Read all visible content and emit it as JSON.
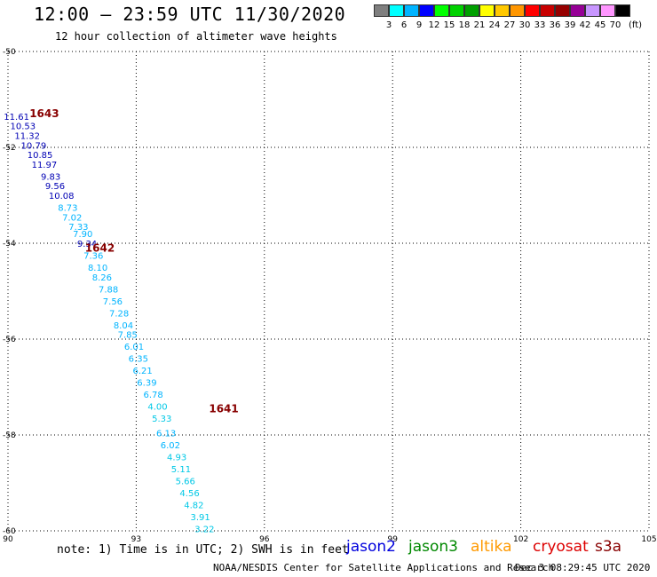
{
  "header": {
    "title": "12:00 – 23:59 UTC 11/30/2020",
    "subtitle": "12 hour collection of altimeter wave heights"
  },
  "colorbar": {
    "colors": [
      "#7f7f7f",
      "#00ffff",
      "#00b4ff",
      "#0000ff",
      "#00ff00",
      "#00d200",
      "#00a000",
      "#ffff00",
      "#ffc800",
      "#ff9600",
      "#ff0000",
      "#c80000",
      "#960000",
      "#960096",
      "#c896ff",
      "#ff96ff",
      "#000000"
    ],
    "labels": [
      "3",
      "6",
      "9",
      "12",
      "15",
      "18",
      "21",
      "24",
      "27",
      "30",
      "33",
      "36",
      "39",
      "42",
      "45",
      "70"
    ],
    "unit": "(ft)"
  },
  "footer": {
    "note": "note: 1) Time is in UTC; 2) SWH is in feet",
    "satellites": [
      {
        "name": "jason2",
        "color": "#0000dd"
      },
      {
        "name": "jason3",
        "color": "#008800"
      },
      {
        "name": "altika",
        "color": "#ff9900"
      },
      {
        "name": "cryosat",
        "color": "#dd0000"
      },
      {
        "name": "s3a",
        "color": "#880000"
      }
    ],
    "credit": "NOAA/NESDIS Center for Satellite Applications and Research",
    "timestamp": "Dec  3 08:29:45 UTC 2020"
  },
  "chart_data": {
    "type": "scatter",
    "xlim": [
      90,
      105
    ],
    "ylim": [
      -60,
      -50
    ],
    "xticks": [
      "90",
      "93",
      "96",
      "99",
      "102",
      "105"
    ],
    "yticks": [
      "-50",
      "-52",
      "-54",
      "-56",
      "-58",
      "-60"
    ],
    "grid": true,
    "points": [
      {
        "lon": 90.2,
        "lat": -51.35,
        "label": "11.61"
      },
      {
        "lon": 90.35,
        "lat": -51.55,
        "label": "10.53"
      },
      {
        "lon": 90.45,
        "lat": -51.75,
        "label": "11.32"
      },
      {
        "lon": 90.6,
        "lat": -51.95,
        "label": "10.79"
      },
      {
        "lon": 90.75,
        "lat": -52.15,
        "label": "10.85"
      },
      {
        "lon": 90.85,
        "lat": -52.35,
        "label": "11.97"
      },
      {
        "lon": 91.0,
        "lat": -52.6,
        "label": "9.83"
      },
      {
        "lon": 91.1,
        "lat": -52.8,
        "label": "9.56"
      },
      {
        "lon": 91.25,
        "lat": -53.0,
        "label": "10.08"
      },
      {
        "lon": 91.4,
        "lat": -53.25,
        "label": "8.73"
      },
      {
        "lon": 91.5,
        "lat": -53.45,
        "label": "7.02"
      },
      {
        "lon": 91.65,
        "lat": -53.65,
        "label": "7.33"
      },
      {
        "lon": 91.75,
        "lat": -53.8,
        "label": "7.90"
      },
      {
        "lon": 91.85,
        "lat": -54.0,
        "label": "9.34"
      },
      {
        "lon": 92.0,
        "lat": -54.25,
        "label": "7.36"
      },
      {
        "lon": 92.1,
        "lat": -54.5,
        "label": "8.10"
      },
      {
        "lon": 92.2,
        "lat": -54.7,
        "label": "8.26"
      },
      {
        "lon": 92.35,
        "lat": -54.95,
        "label": "7.88"
      },
      {
        "lon": 92.45,
        "lat": -55.2,
        "label": "7.56"
      },
      {
        "lon": 92.6,
        "lat": -55.45,
        "label": "7.28"
      },
      {
        "lon": 92.7,
        "lat": -55.7,
        "label": "8.04"
      },
      {
        "lon": 92.8,
        "lat": -55.9,
        "label": "7.85"
      },
      {
        "lon": 92.95,
        "lat": -56.15,
        "label": "6.01"
      },
      {
        "lon": 93.05,
        "lat": -56.4,
        "label": "6.35"
      },
      {
        "lon": 93.15,
        "lat": -56.65,
        "label": "6.21"
      },
      {
        "lon": 93.25,
        "lat": -56.9,
        "label": "6.39"
      },
      {
        "lon": 93.4,
        "lat": -57.15,
        "label": "6.78"
      },
      {
        "lon": 93.5,
        "lat": -57.4,
        "label": "4.00"
      },
      {
        "lon": 93.6,
        "lat": -57.65,
        "label": "5.33"
      },
      {
        "lon": 93.7,
        "lat": -57.95,
        "label": "6.13"
      },
      {
        "lon": 93.8,
        "lat": -58.2,
        "label": "6.02"
      },
      {
        "lon": 93.95,
        "lat": -58.45,
        "label": "4.93"
      },
      {
        "lon": 94.05,
        "lat": -58.7,
        "label": "5.11"
      },
      {
        "lon": 94.15,
        "lat": -58.95,
        "label": "5.66"
      },
      {
        "lon": 94.25,
        "lat": -59.2,
        "label": "4.56"
      },
      {
        "lon": 94.35,
        "lat": -59.45,
        "label": "4.82"
      },
      {
        "lon": 94.5,
        "lat": -59.7,
        "label": "3.91"
      },
      {
        "lon": 94.6,
        "lat": -59.95,
        "label": "3.22"
      }
    ],
    "time_labels": [
      {
        "lon": 90.85,
        "lat": -51.3,
        "label": "1643"
      },
      {
        "lon": 92.15,
        "lat": -54.1,
        "label": "1642"
      },
      {
        "lon": 95.05,
        "lat": -57.45,
        "label": "1641"
      }
    ]
  }
}
